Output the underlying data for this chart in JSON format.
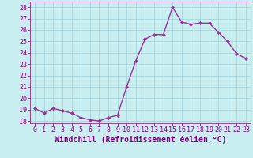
{
  "x": [
    0,
    1,
    2,
    3,
    4,
    5,
    6,
    7,
    8,
    9,
    10,
    11,
    12,
    13,
    14,
    15,
    16,
    17,
    18,
    19,
    20,
    21,
    22,
    23
  ],
  "y": [
    19.1,
    18.7,
    19.1,
    18.9,
    18.7,
    18.3,
    18.1,
    18.0,
    18.3,
    18.5,
    21.0,
    23.3,
    25.2,
    25.6,
    25.6,
    28.0,
    26.7,
    26.5,
    26.6,
    26.6,
    25.8,
    25.0,
    23.9,
    23.5
  ],
  "line_color": "#993399",
  "marker": "D",
  "marker_size": 2,
  "line_width": 1.0,
  "bg_color": "#c8eef0",
  "grid_color": "#a0d0d8",
  "xlabel": "Windchill (Refroidissement éolien,°C)",
  "xlabel_color": "#800080",
  "xlabel_fontsize": 7,
  "yticks": [
    18,
    19,
    20,
    21,
    22,
    23,
    24,
    25,
    26,
    27,
    28
  ],
  "xticks": [
    0,
    1,
    2,
    3,
    4,
    5,
    6,
    7,
    8,
    9,
    10,
    11,
    12,
    13,
    14,
    15,
    16,
    17,
    18,
    19,
    20,
    21,
    22,
    23
  ],
  "ylim": [
    17.8,
    28.5
  ],
  "xlim": [
    -0.5,
    23.5
  ],
  "tick_label_fontsize": 6,
  "tick_color": "#800080",
  "axis_color": "#800080"
}
